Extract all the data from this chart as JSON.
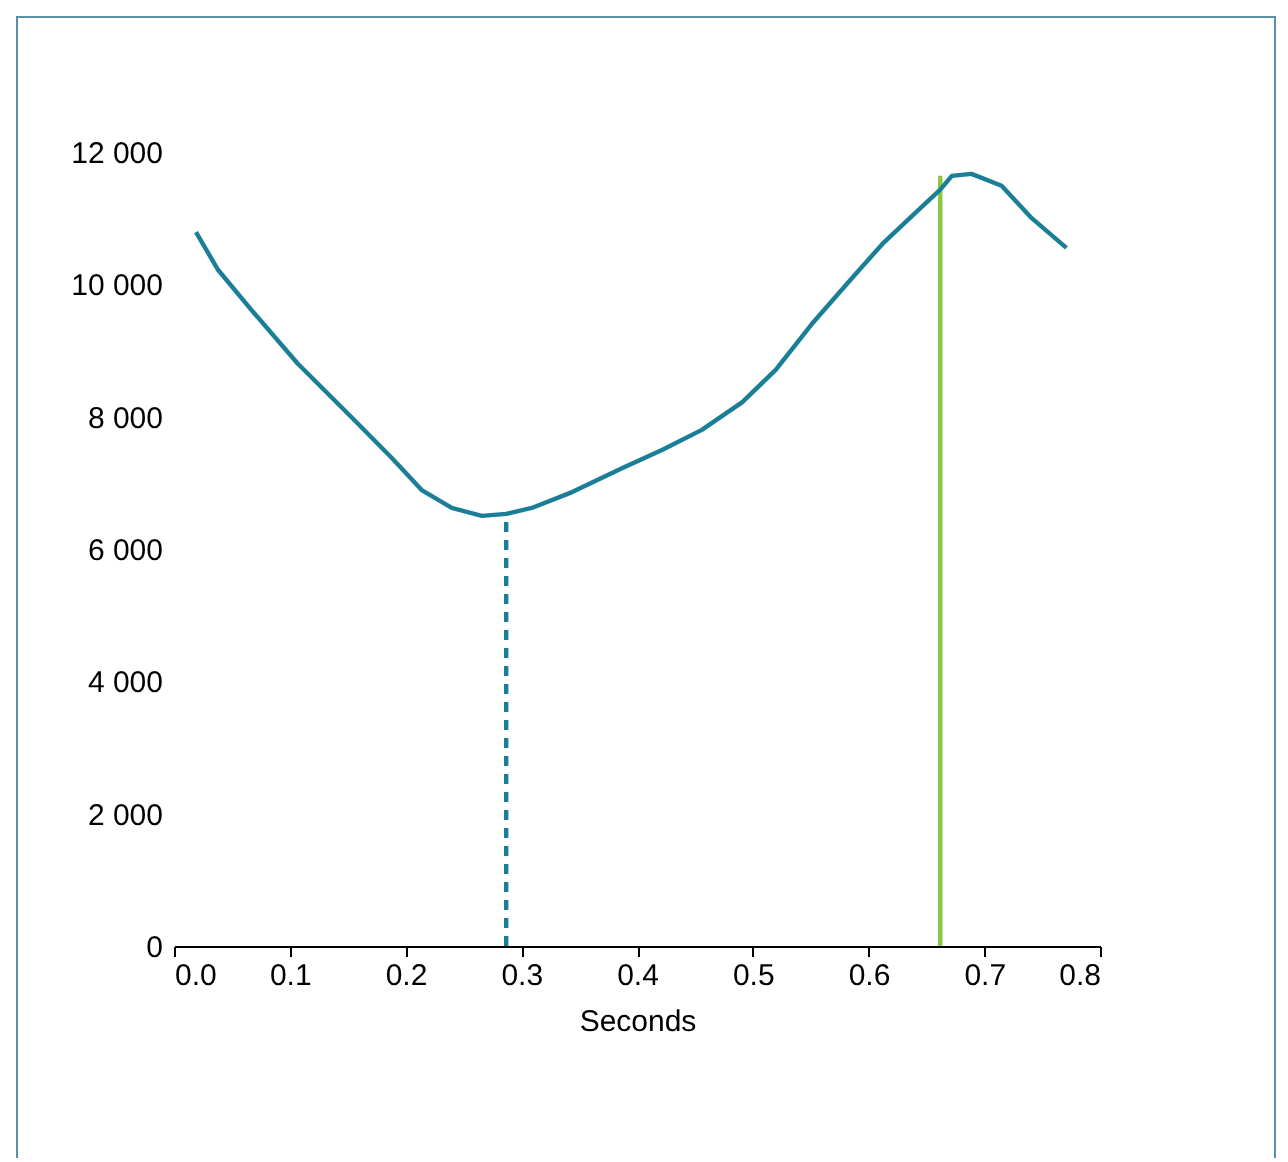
{
  "chart_data": {
    "type": "line",
    "xlabel": "Seconds",
    "xlim": [
      0,
      0.8
    ],
    "xticks": [
      {
        "value": 0,
        "label": "0.0"
      },
      0.1,
      0.2,
      0.3,
      0.4,
      0.5,
      0.6,
      0.7,
      0.8
    ],
    "ylim": [
      0,
      12000
    ],
    "yticks": [
      0,
      {
        "value": 2000,
        "label": "2 000"
      },
      {
        "value": 4000,
        "label": "4 000"
      },
      {
        "value": 6000,
        "label": "6 000"
      },
      {
        "value": 8000,
        "label": "8 000"
      },
      {
        "value": 10000,
        "label": "10 000"
      },
      {
        "value": 12000,
        "label": "12 000"
      }
    ],
    "grid": false,
    "marker": "none",
    "series": [
      {
        "color": "#1a7f96",
        "line_style": "solid",
        "x": [
          0.019,
          0.038,
          0.067,
          0.107,
          0.154,
          0.188,
          0.214,
          0.24,
          0.266,
          0.287,
          0.309,
          0.344,
          0.387,
          0.422,
          0.456,
          0.491,
          0.52,
          0.551,
          0.586,
          0.612,
          0.643,
          0.662,
          0.672,
          0.689,
          0.715,
          0.741,
          0.771
        ],
        "values": [
          10790,
          10220,
          9610,
          8800,
          7980,
          7380,
          6890,
          6620,
          6500,
          6530,
          6620,
          6860,
          7220,
          7500,
          7800,
          8220,
          8710,
          9400,
          10100,
          10610,
          11120,
          11430,
          11640,
          11670,
          11490,
          11000,
          10550
        ]
      },
      {
        "color": "#1a7f96",
        "line_style": "dashed",
        "x": [
          0.287,
          0.287
        ],
        "values": [
          0,
          6530
        ]
      },
      {
        "color": "#8cc63f",
        "line_style": "solid",
        "x": [
          0.662,
          0.662
        ],
        "values": [
          0,
          11640
        ]
      }
    ]
  }
}
